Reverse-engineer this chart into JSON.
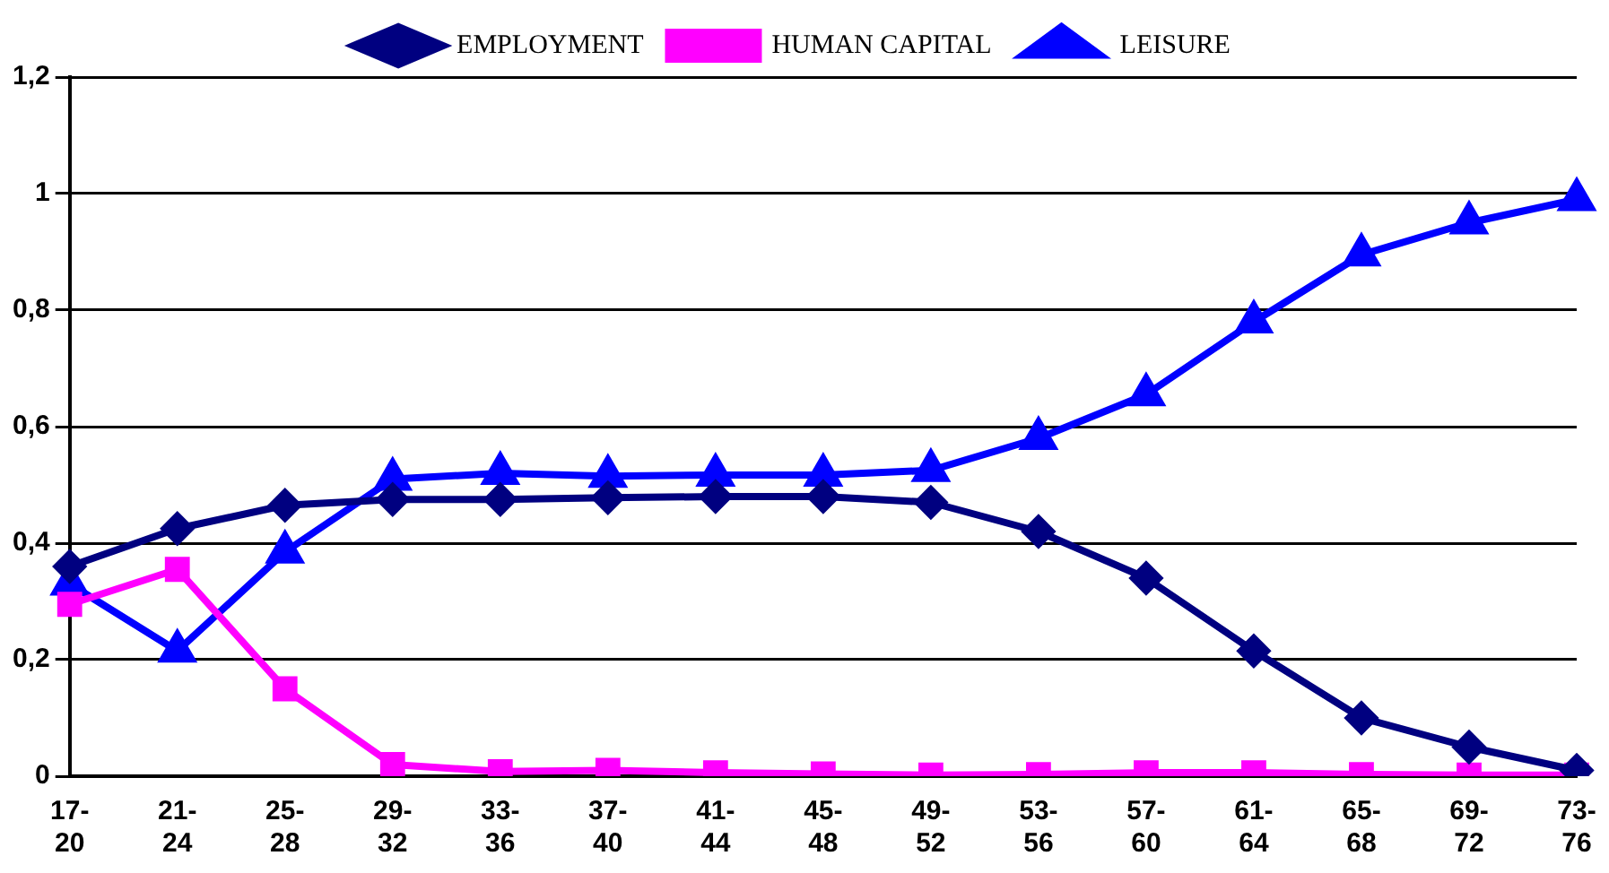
{
  "chart_data": {
    "type": "line",
    "categories": [
      "17-20",
      "21-24",
      "25-28",
      "29-32",
      "33-36",
      "37-40",
      "41-44",
      "45-48",
      "49-52",
      "53-56",
      "57-60",
      "61-64",
      "65-68",
      "69-72",
      "73-76"
    ],
    "series": [
      {
        "name": "EMPLOYMENT",
        "color": "#000080",
        "marker": "diamond",
        "values": [
          0.36,
          0.425,
          0.465,
          0.475,
          0.475,
          0.478,
          0.48,
          0.48,
          0.47,
          0.42,
          0.34,
          0.215,
          0.1,
          0.05,
          0.01
        ]
      },
      {
        "name": "HUMAN CAPITAL",
        "color": "#ff00ff",
        "marker": "square",
        "values": [
          0.295,
          0.355,
          0.15,
          0.02,
          0.008,
          0.01,
          0.006,
          0.004,
          0.002,
          0.003,
          0.006,
          0.006,
          0.003,
          0.002,
          0.002
        ]
      },
      {
        "name": "LEISURE",
        "color": "#0000ff",
        "marker": "triangle",
        "values": [
          0.33,
          0.215,
          0.385,
          0.51,
          0.52,
          0.515,
          0.517,
          0.517,
          0.525,
          0.58,
          0.655,
          0.78,
          0.895,
          0.95,
          0.99
        ]
      }
    ],
    "ylim": [
      0,
      1.2
    ],
    "yticks": [
      0,
      {
        "value": 0.2,
        "label": "0,2"
      },
      {
        "value": 0.4,
        "label": "0,4"
      },
      {
        "value": 0.6,
        "label": "0,6"
      },
      {
        "value": 0.8,
        "label": "0,8"
      },
      1,
      {
        "value": 1.2,
        "label": "1,2"
      }
    ],
    "grid": "y",
    "legend": "top",
    "line_style": "solid"
  }
}
